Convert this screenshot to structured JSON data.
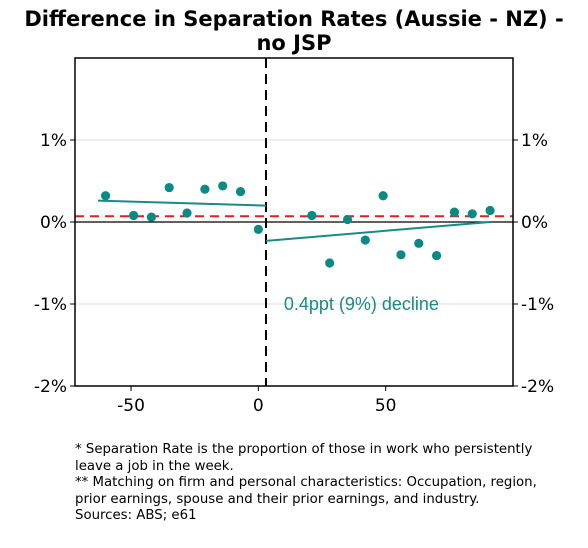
{
  "chart_data": {
    "type": "scatter",
    "title": "Difference in Separation Rates (Aussie - NZ) -",
    "title_line2": "no JSP",
    "xlabel": "",
    "ylabel": "",
    "xlim": [
      -72,
      100
    ],
    "ylim": [
      -2,
      2
    ],
    "x_ticks": [
      {
        "value": -50,
        "label": "-50"
      },
      {
        "value": 0,
        "label": "0"
      },
      {
        "value": 50,
        "label": "50"
      }
    ],
    "y_ticks": [
      {
        "value": 1,
        "label": "1%"
      },
      {
        "value": 0,
        "label": "0%"
      },
      {
        "value": -1,
        "label": "-1%"
      },
      {
        "value": -2,
        "label": "-2%"
      }
    ],
    "grid": "horizontal",
    "points_color": "#0a8a82",
    "fit_color": "#1a8a84",
    "reference_color": "#e02020",
    "points": [
      {
        "x": -60,
        "y": 0.32
      },
      {
        "x": -49,
        "y": 0.08
      },
      {
        "x": -42,
        "y": 0.06
      },
      {
        "x": -35,
        "y": 0.42
      },
      {
        "x": -28,
        "y": 0.11
      },
      {
        "x": -21,
        "y": 0.4
      },
      {
        "x": -14,
        "y": 0.44
      },
      {
        "x": -7,
        "y": 0.37
      },
      {
        "x": 0,
        "y": -0.09
      },
      {
        "x": 21,
        "y": 0.08
      },
      {
        "x": 28,
        "y": -0.5
      },
      {
        "x": 35,
        "y": 0.03
      },
      {
        "x": 42,
        "y": -0.22
      },
      {
        "x": 49,
        "y": 0.32
      },
      {
        "x": 56,
        "y": -0.4
      },
      {
        "x": 63,
        "y": -0.26
      },
      {
        "x": 70,
        "y": -0.41
      },
      {
        "x": 77,
        "y": 0.12
      },
      {
        "x": 84,
        "y": 0.1
      },
      {
        "x": 91,
        "y": 0.14
      }
    ],
    "fit_lines": [
      {
        "x": [
          -63,
          3
        ],
        "y": [
          0.26,
          0.2
        ]
      },
      {
        "x": [
          3,
          91
        ],
        "y": [
          -0.23,
          0.0
        ]
      }
    ],
    "reference_hline": 0.07,
    "zero_line": 0,
    "break_vline": 3,
    "annotation": {
      "text": "0.4ppt (9%) decline",
      "x": 10,
      "y": -1.0
    }
  },
  "notes": [
    "* Separation Rate is the proportion of those in work who persistently leave a job in the week.",
    "** Matching on firm and personal characteristics: Occupation, region, prior earnings, spouse and their prior earnings, and industry.",
    "Sources: ABS; e61"
  ]
}
